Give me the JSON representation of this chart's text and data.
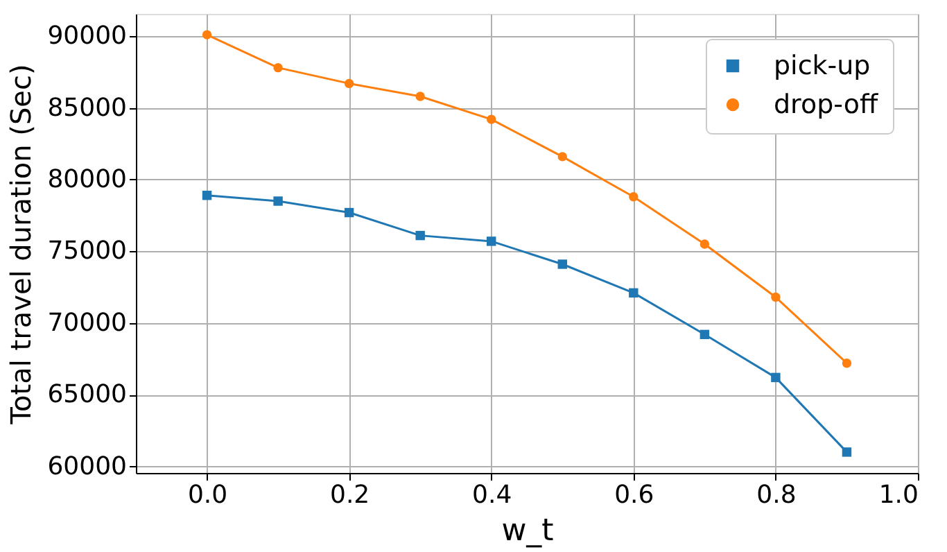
{
  "chart_data": {
    "type": "line",
    "xlabel": "w_t",
    "ylabel": "Total travel duration (Sec)",
    "x": [
      0.0,
      0.1,
      0.2,
      0.3,
      0.4,
      0.5,
      0.6,
      0.7,
      0.8,
      0.9
    ],
    "series": [
      {
        "name": "pick-up",
        "color": "#1f77b4",
        "marker": "square",
        "values": [
          78900,
          78500,
          77700,
          76100,
          75700,
          74100,
          72100,
          69200,
          66200,
          61000
        ]
      },
      {
        "name": "drop-off",
        "color": "#ff7f0e",
        "marker": "circle",
        "values": [
          90100,
          87800,
          86700,
          85800,
          84200,
          81600,
          78800,
          75500,
          71800,
          67200
        ]
      }
    ],
    "xlim": [
      -0.1,
      1.0
    ],
    "xticks": [
      {
        "value": 0,
        "label": "0.0"
      },
      0.2,
      0.4,
      0.6,
      0.8,
      {
        "value": 1,
        "label": "1.0"
      }
    ],
    "ylim": [
      59545,
      91555
    ],
    "yticks": [
      60000,
      65000,
      70000,
      75000,
      80000,
      85000,
      90000
    ],
    "grid": true,
    "legend": "top right",
    "line_style": "solid"
  }
}
